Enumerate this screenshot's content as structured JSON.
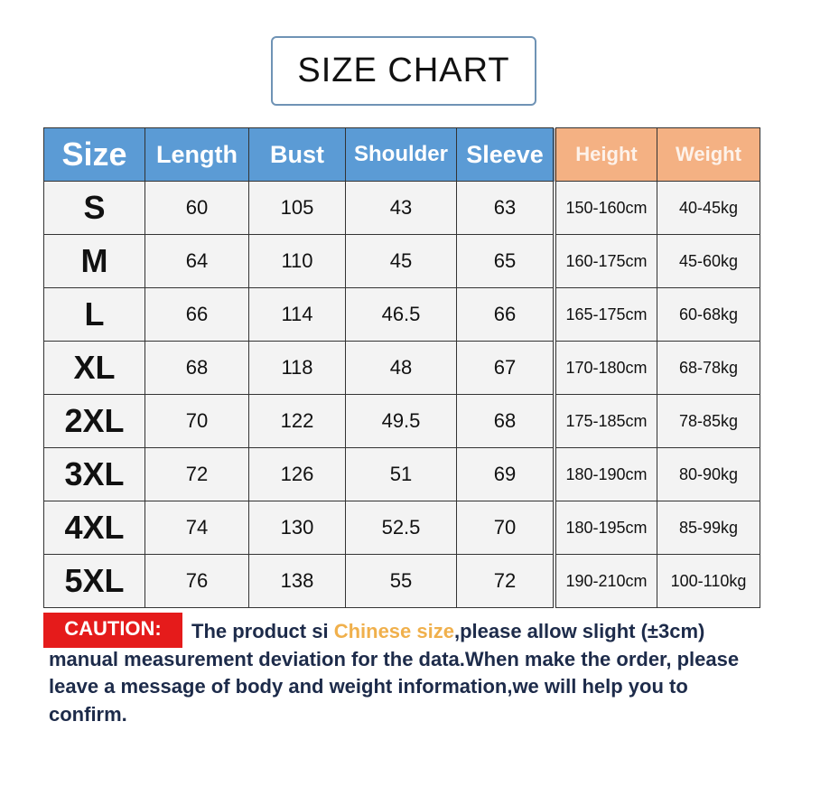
{
  "title": "SIZE CHART",
  "headers": [
    "Size",
    "Length",
    "Bust",
    "Shoulder",
    "Sleeve",
    "Height",
    "Weight"
  ],
  "rows": [
    [
      "S",
      "60",
      "105",
      "43",
      "63",
      "150-160cm",
      "40-45kg"
    ],
    [
      "M",
      "64",
      "110",
      "45",
      "65",
      "160-175cm",
      "45-60kg"
    ],
    [
      "L",
      "66",
      "114",
      "46.5",
      "66",
      "165-175cm",
      "60-68kg"
    ],
    [
      "XL",
      "68",
      "118",
      "48",
      "67",
      "170-180cm",
      "68-78kg"
    ],
    [
      "2XL",
      "70",
      "122",
      "49.5",
      "68",
      "175-185cm",
      "78-85kg"
    ],
    [
      "3XL",
      "72",
      "126",
      "51",
      "69",
      "180-190cm",
      "80-90kg"
    ],
    [
      "4XL",
      "74",
      "130",
      "52.5",
      "70",
      "180-195cm",
      "85-99kg"
    ],
    [
      "5XL",
      "76",
      "138",
      "55",
      "72",
      "190-210cm",
      "100-110kg"
    ]
  ],
  "caution": {
    "label": "CAUTION:",
    "text_before": "The product si ",
    "highlight": "Chinese size",
    "text_after": ",please allow slight (±3cm) manual measurement deviation for the data.When make the order, please leave a message of body and weight information,we will help you to confirm."
  },
  "colors": {
    "header_blue": "#5b9bd5",
    "header_orange": "#f4b183",
    "caution_red": "#e51b1b",
    "highlight": "#f0b04c"
  }
}
